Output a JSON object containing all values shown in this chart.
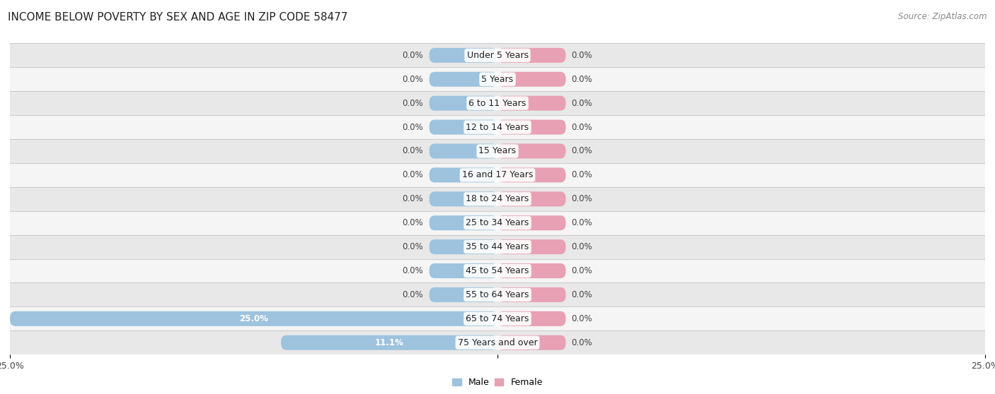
{
  "title": "INCOME BELOW POVERTY BY SEX AND AGE IN ZIP CODE 58477",
  "source": "Source: ZipAtlas.com",
  "categories": [
    "Under 5 Years",
    "5 Years",
    "6 to 11 Years",
    "12 to 14 Years",
    "15 Years",
    "16 and 17 Years",
    "18 to 24 Years",
    "25 to 34 Years",
    "35 to 44 Years",
    "45 to 54 Years",
    "55 to 64 Years",
    "65 to 74 Years",
    "75 Years and over"
  ],
  "male_values": [
    0.0,
    0.0,
    0.0,
    0.0,
    0.0,
    0.0,
    0.0,
    0.0,
    0.0,
    0.0,
    0.0,
    25.0,
    11.1
  ],
  "female_values": [
    0.0,
    0.0,
    0.0,
    0.0,
    0.0,
    0.0,
    0.0,
    0.0,
    0.0,
    0.0,
    0.0,
    0.0,
    0.0
  ],
  "male_color": "#9dc3de",
  "female_color": "#e8a0b4",
  "bg_even_color": "#e8e8e8",
  "bg_odd_color": "#f5f5f5",
  "x_max": 25.0,
  "x_min": -25.0,
  "default_male_bar": 3.5,
  "default_female_bar": 3.5,
  "bar_height": 0.62,
  "title_fontsize": 11,
  "label_fontsize": 9,
  "value_fontsize": 8.5,
  "tick_fontsize": 9,
  "source_fontsize": 8.5
}
